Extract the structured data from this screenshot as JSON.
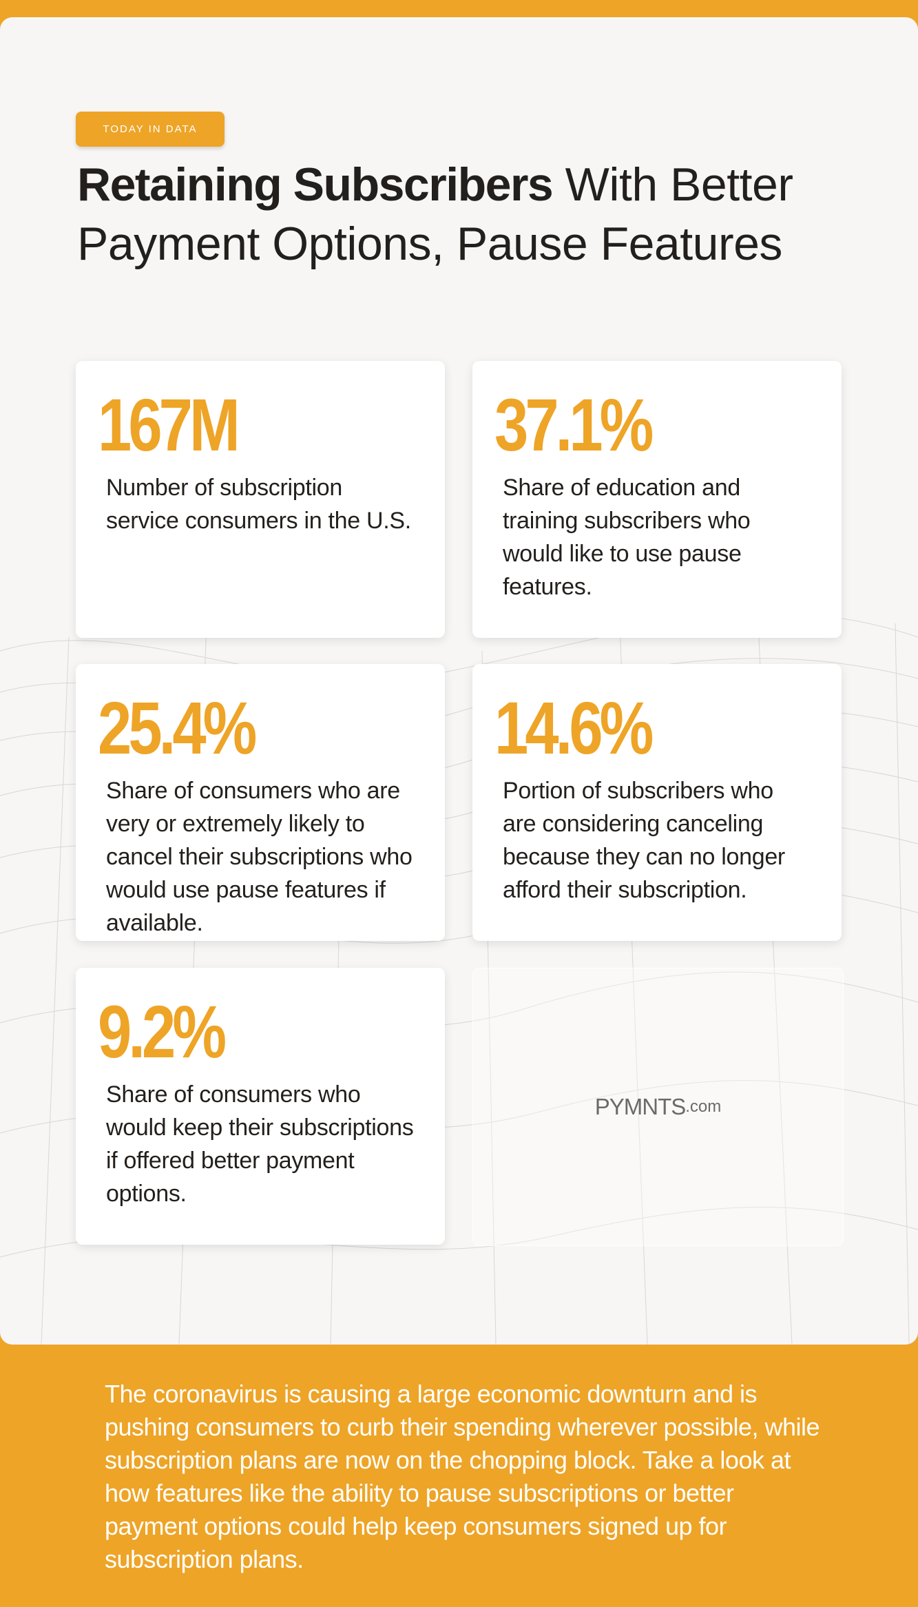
{
  "badge": "TODAY IN DATA",
  "title": {
    "bold": "Retaining Subscribers",
    "regular": "With Better Payment Options, Pause Features"
  },
  "stats": [
    {
      "value": "167M",
      "description": "Number of subscription service consumers in the U.S."
    },
    {
      "value": "37.1%",
      "description": "Share of education and training subscribers who would like to use pause features."
    },
    {
      "value": "25.4%",
      "description": "Share of consumers who are very or extremely likely to cancel their subscriptions who would use pause features if available."
    },
    {
      "value": "14.6%",
      "description": "Portion of subscribers who are considering canceling because they can no longer afford their subscription."
    },
    {
      "value": "9.2%",
      "description": "Share of consumers who would keep their subscriptions if offered better payment options."
    }
  ],
  "logo": {
    "name": "PYMNTS",
    "suffix": ".com"
  },
  "footer": "The coronavirus is causing a large economic downturn and is pushing consumers to curb their spending wherever possible, while subscription plans are now on the chopping block. Take a look at how features like the ability to pause subscriptions or better payment options could help keep consumers signed up for subscription plans."
}
